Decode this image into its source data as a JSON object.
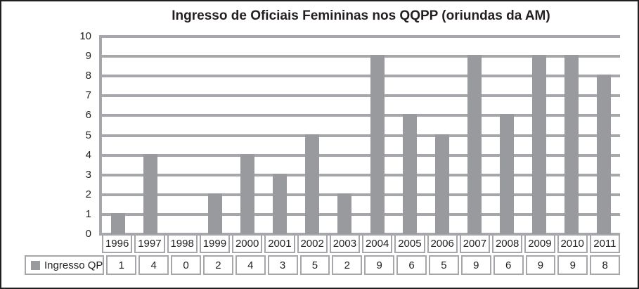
{
  "chart_data": {
    "type": "bar",
    "title": "Ingresso de Oficiais Femininas nos QQPP (oriundas da AM)",
    "categories": [
      "1996",
      "1997",
      "1998",
      "1999",
      "2000",
      "2001",
      "2002",
      "2003",
      "2004",
      "2005",
      "2006",
      "2007",
      "2008",
      "2009",
      "2010",
      "2011"
    ],
    "series": [
      {
        "name": "Ingresso QP",
        "values": [
          1,
          4,
          0,
          2,
          4,
          3,
          5,
          2,
          9,
          6,
          5,
          9,
          6,
          9,
          9,
          8
        ]
      }
    ],
    "xlabel": "",
    "ylabel": "",
    "ylim": [
      0,
      10
    ],
    "ytick_interval": 1,
    "yticks": [
      "0",
      "1",
      "2",
      "3",
      "4",
      "5",
      "6",
      "7",
      "8",
      "9",
      "10"
    ],
    "grid": true,
    "legend_position": "data-table-left",
    "data_table_shown": true
  },
  "colors": {
    "bar": "#989a9d",
    "gridline": "#a5a7aa",
    "table_border": "#a5a7aa",
    "text": "#231f20",
    "frame": "#1f1f1f",
    "background": "#ffffff"
  }
}
